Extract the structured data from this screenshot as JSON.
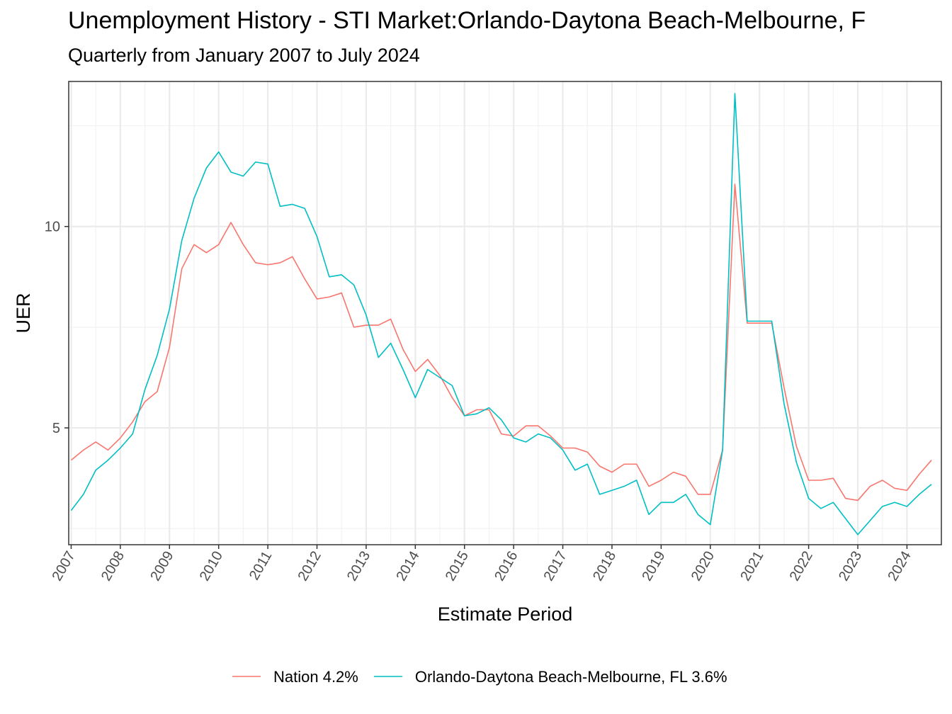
{
  "chart_data": {
    "type": "line",
    "title": "Unemployment History - STI Market:Orlando-Daytona Beach-Melbourne, F",
    "subtitle": "Quarterly from January 2007 to July 2024",
    "xlabel": "Estimate Period",
    "ylabel": "UER",
    "xlim": [
      2006.95,
      2024.7
    ],
    "ylim": [
      2.1,
      13.6
    ],
    "x_ticks": [
      2007,
      2008,
      2009,
      2010,
      2011,
      2012,
      2013,
      2014,
      2015,
      2016,
      2017,
      2018,
      2019,
      2020,
      2021,
      2022,
      2023,
      2024
    ],
    "y_ticks": [
      5,
      10
    ],
    "y_minor_ticks": [
      2.5,
      7.5,
      12.5
    ],
    "grid": true,
    "legend_position": "bottom",
    "x": [
      2007.0,
      2007.25,
      2007.5,
      2007.75,
      2008.0,
      2008.25,
      2008.5,
      2008.75,
      2009.0,
      2009.25,
      2009.5,
      2009.75,
      2010.0,
      2010.25,
      2010.5,
      2010.75,
      2011.0,
      2011.25,
      2011.5,
      2011.75,
      2012.0,
      2012.25,
      2012.5,
      2012.75,
      2013.0,
      2013.25,
      2013.5,
      2013.75,
      2014.0,
      2014.25,
      2014.5,
      2014.75,
      2015.0,
      2015.25,
      2015.5,
      2015.75,
      2016.0,
      2016.25,
      2016.5,
      2016.75,
      2017.0,
      2017.25,
      2017.5,
      2017.75,
      2018.0,
      2018.25,
      2018.5,
      2018.75,
      2019.0,
      2019.25,
      2019.5,
      2019.75,
      2020.0,
      2020.25,
      2020.5,
      2020.75,
      2021.0,
      2021.25,
      2021.5,
      2021.75,
      2022.0,
      2022.25,
      2022.5,
      2022.75,
      2023.0,
      2023.25,
      2023.5,
      2023.75,
      2024.0,
      2024.25,
      2024.5
    ],
    "series": [
      {
        "name": "Nation 4.2%",
        "color": "#F8766D",
        "values": [
          4.2,
          4.45,
          4.65,
          4.45,
          4.75,
          5.15,
          5.65,
          5.9,
          7.0,
          8.95,
          9.55,
          9.35,
          9.55,
          10.1,
          9.55,
          9.1,
          9.05,
          9.1,
          9.25,
          8.7,
          8.2,
          8.25,
          8.35,
          7.5,
          7.55,
          7.55,
          7.7,
          6.95,
          6.4,
          6.7,
          6.3,
          5.75,
          5.3,
          5.45,
          5.45,
          4.85,
          4.8,
          5.05,
          5.05,
          4.8,
          4.5,
          4.5,
          4.4,
          4.05,
          3.9,
          4.1,
          4.1,
          3.55,
          3.7,
          3.9,
          3.8,
          3.35,
          3.35,
          4.45,
          11.05,
          7.6,
          7.6,
          7.6,
          6.0,
          4.55,
          3.7,
          3.7,
          3.75,
          3.25,
          3.2,
          3.55,
          3.7,
          3.5,
          3.45,
          3.85,
          4.2
        ]
      },
      {
        "name": "Orlando-Daytona Beach-Melbourne, FL 3.6%",
        "color": "#00BFC4",
        "values": [
          2.95,
          3.35,
          3.95,
          4.2,
          4.5,
          4.85,
          5.95,
          6.8,
          7.95,
          9.65,
          10.7,
          11.45,
          11.85,
          11.35,
          11.25,
          11.6,
          11.55,
          10.5,
          10.55,
          10.45,
          9.75,
          8.75,
          8.8,
          8.55,
          7.8,
          6.75,
          7.1,
          6.45,
          5.75,
          6.45,
          6.25,
          6.05,
          5.3,
          5.35,
          5.5,
          5.2,
          4.75,
          4.65,
          4.85,
          4.75,
          4.45,
          3.95,
          4.1,
          3.35,
          3.45,
          3.55,
          3.7,
          2.85,
          3.15,
          3.15,
          3.35,
          2.85,
          2.6,
          4.45,
          13.3,
          7.65,
          7.65,
          7.65,
          5.6,
          4.15,
          3.25,
          3.0,
          3.15,
          2.75,
          2.35,
          2.7,
          3.05,
          3.15,
          3.05,
          3.35,
          3.6
        ]
      }
    ]
  }
}
